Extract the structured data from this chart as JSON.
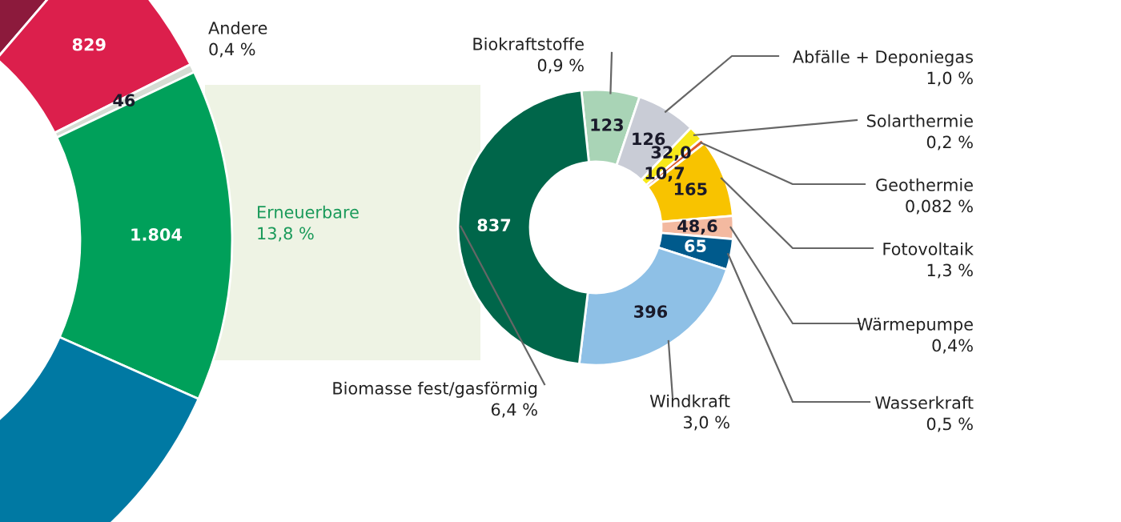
{
  "chart_data": [
    {
      "type": "donut",
      "categories": [
        null,
        null,
        "Andere\n0,4 %",
        "Erneuerbare\n13,8 %",
        null
      ],
      "values": [
        1479,
        829,
        46,
        1804,
        8976
      ],
      "value_labels": [
        null,
        "829",
        "46",
        "1.804",
        null
      ],
      "colors": [
        "#8c1a3c",
        "#dc1f4c",
        "#d5dcd3",
        "#00a05a",
        "#0079a3"
      ]
    },
    {
      "type": "donut",
      "categories": [
        "Biokraftstoffe\n0,9 %",
        "Abfälle + Deponiegas\n1,0 %",
        "Solarthermie\n0,2 %",
        "Geothermie\n0,082 %",
        "Fotovoltaik\n1,3 %",
        "Wärmepumpe\n0,4%",
        "Wasserkraft\n0,5 %",
        "Windkraft\n3,0 %",
        "Biomasse fest/gasförmig\n6,4 %"
      ],
      "values": [
        123,
        126,
        32.0,
        10.7,
        165,
        48.6,
        65,
        396,
        837
      ],
      "value_labels": [
        "123",
        "126",
        "32,0",
        "10,7",
        "165",
        "48,6",
        "65",
        "396",
        "837"
      ],
      "colors": [
        "#a9d4b6",
        "#c9ccd6",
        "#f7e81a",
        "#e05a2a",
        "#f8c300",
        "#f3b9a0",
        "#005a8c",
        "#8ec0e6",
        "#00664a"
      ]
    }
  ]
}
